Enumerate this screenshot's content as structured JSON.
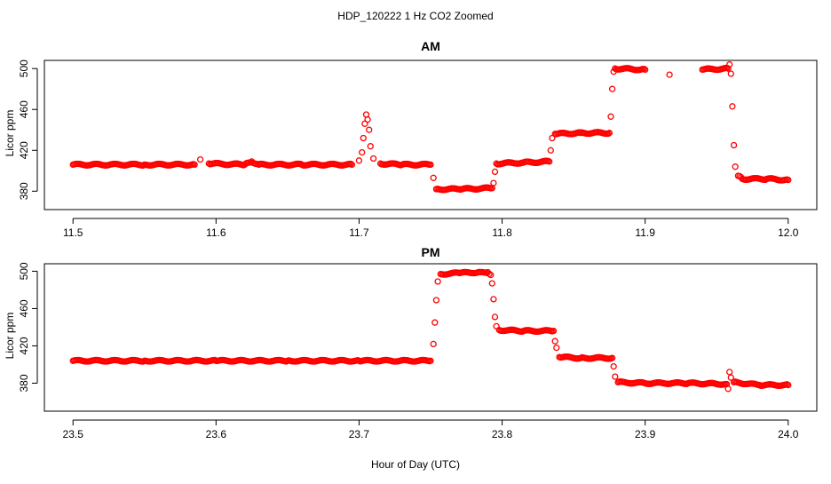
{
  "title": "HDP_120222  1 Hz CO2 Zoomed",
  "xlabel": "Hour of Day (UTC)",
  "colors": {
    "points": "#ff0000",
    "axes": "#000000",
    "background": "#ffffff"
  },
  "chart_data": [
    {
      "type": "scatter",
      "title": "AM",
      "ylabel": "Licor ppm",
      "xlim": [
        11.48,
        12.02
      ],
      "ylim": [
        362,
        508
      ],
      "x_ticks": [
        "11.5",
        "11.6",
        "11.7",
        "11.8",
        "11.9",
        "12.0"
      ],
      "y_ticks": [
        "380",
        "420",
        "460",
        "500"
      ],
      "series": [
        {
          "marker": "open-circle",
          "color": "#ff0000",
          "points": [
            [
              11.5,
              406
            ],
            [
              11.55,
              406
            ],
            [
              11.585,
              406
            ],
            [
              11.589,
              411
            ],
            [
              11.595,
              407
            ],
            [
              11.62,
              406
            ],
            [
              11.625,
              409
            ],
            [
              11.63,
              406
            ],
            [
              11.66,
              406
            ],
            [
              11.695,
              406
            ],
            [
              11.7,
              410
            ],
            [
              11.702,
              418
            ],
            [
              11.703,
              432
            ],
            [
              11.704,
              446
            ],
            [
              11.705,
              455
            ],
            [
              11.706,
              450
            ],
            [
              11.707,
              440
            ],
            [
              11.708,
              424
            ],
            [
              11.71,
              412
            ],
            [
              11.715,
              407
            ],
            [
              11.73,
              406
            ],
            [
              11.75,
              406
            ],
            [
              11.752,
              393
            ],
            [
              11.754,
              382
            ],
            [
              11.77,
              382
            ],
            [
              11.793,
              383
            ],
            [
              11.794,
              388
            ],
            [
              11.795,
              399
            ],
            [
              11.796,
              407
            ],
            [
              11.815,
              408
            ],
            [
              11.833,
              409
            ],
            [
              11.834,
              420
            ],
            [
              11.835,
              432
            ],
            [
              11.837,
              436
            ],
            [
              11.855,
              437
            ],
            [
              11.875,
              437
            ],
            [
              11.876,
              453
            ],
            [
              11.877,
              480
            ],
            [
              11.878,
              497
            ],
            [
              11.879,
              500
            ],
            [
              11.9,
              499
            ],
            [
              11.917,
              494
            ],
            [
              11.94,
              499
            ],
            [
              11.958,
              500
            ],
            [
              11.959,
              504
            ],
            [
              11.96,
              495
            ],
            [
              11.961,
              463
            ],
            [
              11.962,
              425
            ],
            [
              11.963,
              404
            ],
            [
              11.965,
              395
            ],
            [
              11.968,
              392
            ],
            [
              11.985,
              392
            ],
            [
              12.0,
              391
            ]
          ]
        }
      ]
    },
    {
      "type": "scatter",
      "title": "PM",
      "ylabel": "Licor ppm",
      "xlim": [
        23.48,
        24.02
      ],
      "ylim": [
        350,
        508
      ],
      "x_ticks": [
        "23.5",
        "23.6",
        "23.7",
        "23.8",
        "23.9",
        "24.0"
      ],
      "y_ticks": [
        "380",
        "420",
        "460",
        "500"
      ],
      "series": [
        {
          "marker": "open-circle",
          "color": "#ff0000",
          "points": [
            [
              23.5,
              404
            ],
            [
              23.55,
              404
            ],
            [
              23.6,
              404
            ],
            [
              23.65,
              404
            ],
            [
              23.7,
              404
            ],
            [
              23.75,
              404
            ],
            [
              23.752,
              422
            ],
            [
              23.753,
              445
            ],
            [
              23.754,
              469
            ],
            [
              23.755,
              489
            ],
            [
              23.757,
              497
            ],
            [
              23.77,
              498
            ],
            [
              23.785,
              499
            ],
            [
              23.79,
              499
            ],
            [
              23.792,
              496
            ],
            [
              23.793,
              487
            ],
            [
              23.794,
              470
            ],
            [
              23.795,
              451
            ],
            [
              23.796,
              441
            ],
            [
              23.798,
              437
            ],
            [
              23.815,
              436
            ],
            [
              23.836,
              436
            ],
            [
              23.837,
              425
            ],
            [
              23.838,
              418
            ],
            [
              23.84,
              408
            ],
            [
              23.855,
              407
            ],
            [
              23.877,
              407
            ],
            [
              23.878,
              398
            ],
            [
              23.879,
              387
            ],
            [
              23.881,
              381
            ],
            [
              23.9,
              380
            ],
            [
              23.93,
              380
            ],
            [
              23.957,
              379
            ],
            [
              23.958,
              374
            ],
            [
              23.959,
              392
            ],
            [
              23.96,
              386
            ],
            [
              23.962,
              381
            ],
            [
              23.98,
              378
            ],
            [
              24.0,
              378
            ]
          ]
        }
      ]
    }
  ]
}
